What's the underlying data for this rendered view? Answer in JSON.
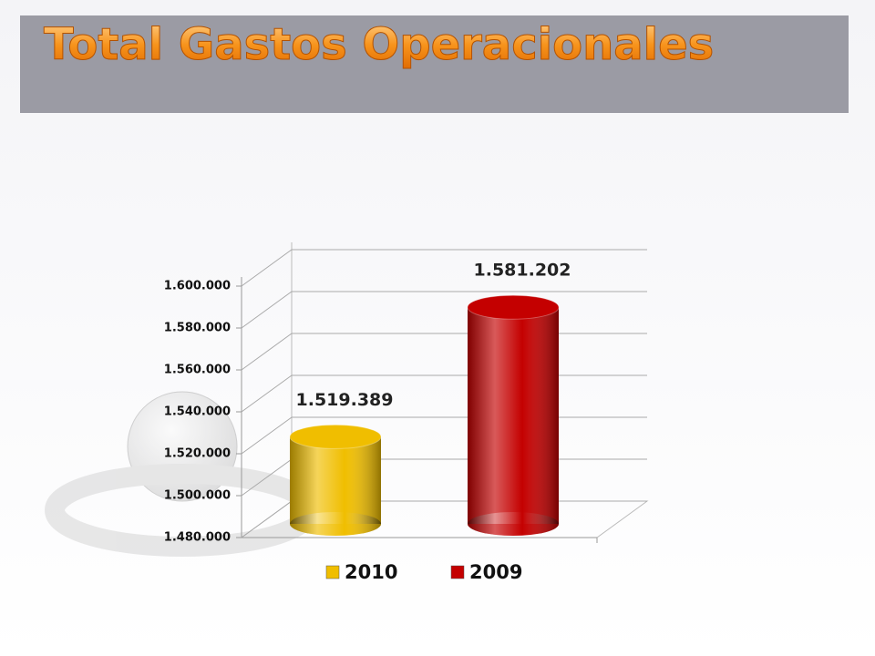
{
  "chart_data": {
    "type": "bar3d",
    "title": "Total Gastos Operacionales",
    "categories": [
      null
    ],
    "series": [
      {
        "name": "2010",
        "color": "#f0be00",
        "values": [
          1519389
        ],
        "value_labels": [
          "1.519.389"
        ]
      },
      {
        "name": "2009",
        "color": "#c40000",
        "values": [
          1581202
        ],
        "value_labels": [
          "1.581.202"
        ]
      }
    ],
    "ylim": [
      1480000,
      1600000
    ],
    "yticks": [
      {
        "value": 1480000,
        "label": "1.480.000"
      },
      {
        "value": 1500000,
        "label": "1.500.000"
      },
      {
        "value": 1520000,
        "label": "1.520.000"
      },
      {
        "value": 1540000,
        "label": "1.540.000"
      },
      {
        "value": 1560000,
        "label": "1.560.000"
      },
      {
        "value": 1580000,
        "label": "1.580.000"
      },
      {
        "value": 1600000,
        "label": "1.600.000"
      }
    ],
    "grid": true,
    "legend": "bottom"
  }
}
